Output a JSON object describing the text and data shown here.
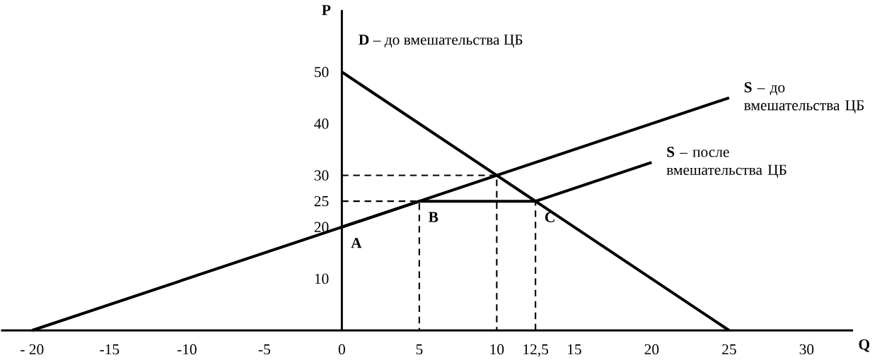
{
  "chart_data": {
    "type": "line",
    "xlabel": "Q",
    "ylabel": "P",
    "xlim": [
      -22,
      33
    ],
    "ylim": [
      0,
      62
    ],
    "xticks": [
      {
        "value": -20,
        "label": "- 20"
      },
      -15,
      -10,
      -5,
      0,
      5,
      10,
      {
        "value": 12.5,
        "label": "12,5"
      },
      15,
      20,
      25,
      30
    ],
    "yticks": [
      10,
      20,
      25,
      30,
      40,
      50
    ],
    "grid": false,
    "marker": "none",
    "series": [
      {
        "name": "**D** – до вмешательства ЦБ",
        "color": "#000000",
        "x": [
          0,
          25
        ],
        "values": [
          50,
          0
        ]
      },
      {
        "name": "**S** – до вмешательства ЦБ",
        "color": "#000000",
        "x": [
          -20,
          25
        ],
        "values": [
          0,
          45
        ]
      },
      {
        "name": "**S** – после вмешательства ЦБ",
        "color": "#000000",
        "x": [
          0,
          5,
          12.5,
          20
        ],
        "values": [
          20,
          25,
          25,
          32.5
        ]
      },
      {
        "color": "#000000",
        "x": [
          0,
          10,
          10
        ],
        "values": [
          30,
          30,
          0
        ],
        "line_style": "dashed"
      },
      {
        "color": "#000000",
        "x": [
          0,
          5,
          5
        ],
        "values": [
          25,
          25,
          0
        ],
        "line_style": "dashed"
      },
      {
        "color": "#000000",
        "x": [
          12.5,
          12.5
        ],
        "values": [
          0,
          25
        ],
        "line_style": "dashed"
      }
    ],
    "annotations": [
      {
        "text": "**A**",
        "x": 0,
        "y": 20
      },
      {
        "text": "**B**",
        "x": 5,
        "y": 25
      },
      {
        "text": "**C**",
        "x": 12.5,
        "y": 25
      }
    ]
  }
}
